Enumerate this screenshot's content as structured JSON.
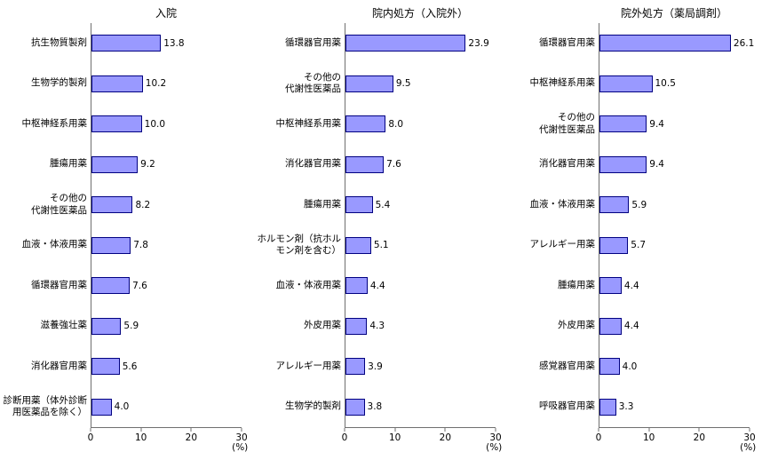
{
  "figure": {
    "background": "#ffffff",
    "bar_fill": "#9999ff",
    "bar_border": "#000080",
    "axis_color": "#6f6f6f"
  },
  "chart_data": [
    {
      "type": "bar",
      "orientation": "horizontal",
      "title": "入院",
      "xlabel": "(%)",
      "xlim": [
        0,
        30
      ],
      "xticks": [
        0,
        10,
        20,
        30
      ],
      "grid": false,
      "legend": false,
      "categories": [
        "抗生物質製剤",
        "生物学的製剤",
        "中枢神経系用薬",
        "腫瘍用薬",
        "その他の\n代謝性医薬品",
        "血液・体液用薬",
        "循環器官用薬",
        "滋養強壮薬",
        "消化器官用薬",
        "診断用薬（体外診断\n用医薬品を除く）"
      ],
      "values": [
        13.8,
        10.2,
        10.0,
        9.2,
        8.2,
        7.8,
        7.6,
        5.9,
        5.6,
        4.0
      ]
    },
    {
      "type": "bar",
      "orientation": "horizontal",
      "title": "院内処方（入院外）",
      "xlabel": "(%)",
      "xlim": [
        0,
        30
      ],
      "xticks": [
        0,
        10,
        20,
        30
      ],
      "grid": false,
      "legend": false,
      "categories": [
        "循環器官用薬",
        "その他の\n代謝性医薬品",
        "中枢神経系用薬",
        "消化器官用薬",
        "腫瘍用薬",
        "ホルモン剤（抗ホル\nモン剤を含む）",
        "血液・体液用薬",
        "外皮用薬",
        "アレルギー用薬",
        "生物学的製剤"
      ],
      "values": [
        23.9,
        9.5,
        8.0,
        7.6,
        5.4,
        5.1,
        4.4,
        4.3,
        3.9,
        3.8
      ]
    },
    {
      "type": "bar",
      "orientation": "horizontal",
      "title": "院外処方（薬局調剤）",
      "xlabel": "(%)",
      "xlim": [
        0,
        30
      ],
      "xticks": [
        0,
        10,
        20,
        30
      ],
      "grid": false,
      "legend": false,
      "categories": [
        "循環器官用薬",
        "中枢神経系用薬",
        "その他の\n代謝性医薬品",
        "消化器官用薬",
        "血液・体液用薬",
        "アレルギー用薬",
        "腫瘍用薬",
        "外皮用薬",
        "感覚器官用薬",
        "呼吸器官用薬"
      ],
      "values": [
        26.1,
        10.5,
        9.4,
        9.4,
        5.9,
        5.7,
        4.4,
        4.4,
        4.0,
        3.3
      ]
    }
  ]
}
